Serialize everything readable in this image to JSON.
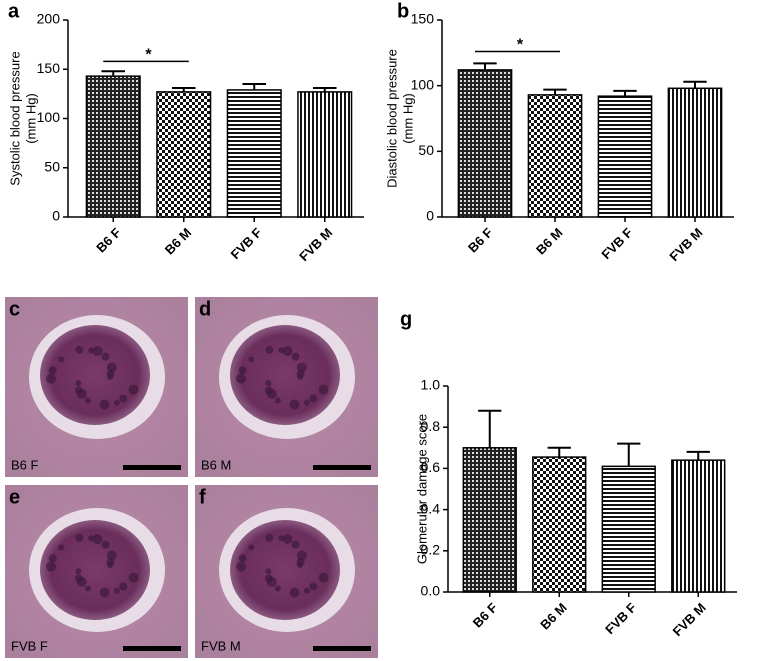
{
  "chart_data": [
    {
      "type": "bar",
      "panel_label": "a",
      "ylabel": [
        "Systolic blood pressure",
        "(mm Hg)"
      ],
      "categories": [
        "B6 F",
        "B6 M",
        "FVB F",
        "FVB M"
      ],
      "values": [
        143,
        127,
        129,
        127
      ],
      "errors": [
        5,
        4,
        6,
        4
      ],
      "patterns": [
        "crosshatch",
        "checker",
        "hlines",
        "vlines"
      ],
      "ylim": [
        0,
        200
      ],
      "yticks": [
        0,
        50,
        100,
        150,
        200
      ],
      "significance": [
        {
          "label": "*",
          "between": [
            0,
            1
          ],
          "y": 158
        }
      ]
    },
    {
      "type": "bar",
      "panel_label": "b",
      "ylabel": [
        "Diastolic blood pressure",
        "(mm Hg)"
      ],
      "categories": [
        "B6 F",
        "B6 M",
        "FVB F",
        "FVB M"
      ],
      "values": [
        112,
        93,
        92,
        98
      ],
      "errors": [
        5,
        4,
        4,
        5
      ],
      "patterns": [
        "crosshatch",
        "checker",
        "hlines",
        "vlines"
      ],
      "ylim": [
        0,
        150
      ],
      "yticks": [
        0,
        50,
        100,
        150
      ],
      "significance": [
        {
          "label": "*",
          "between": [
            0,
            1
          ],
          "y": 126
        }
      ]
    },
    {
      "type": "bar",
      "panel_label": "g",
      "ylabel": [
        "Glomerular damage score"
      ],
      "categories": [
        "B6 F",
        "B6 M",
        "FVB F",
        "FVB M"
      ],
      "values": [
        0.7,
        0.655,
        0.61,
        0.64
      ],
      "errors": [
        0.18,
        0.045,
        0.11,
        0.04
      ],
      "patterns": [
        "crosshatch",
        "checker",
        "hlines",
        "vlines"
      ],
      "ylim": [
        0,
        1
      ],
      "yticks": [
        {
          "value": 0,
          "label": "0.0"
        },
        0.2,
        0.4,
        0.6,
        0.8,
        {
          "value": 1,
          "label": "1.0"
        }
      ]
    }
  ],
  "panels": [
    {
      "letter": "c",
      "label": "B6 F"
    },
    {
      "letter": "d",
      "label": "B6 M"
    },
    {
      "letter": "e",
      "label": "FVB F"
    },
    {
      "letter": "f",
      "label": "FVB M"
    }
  ]
}
